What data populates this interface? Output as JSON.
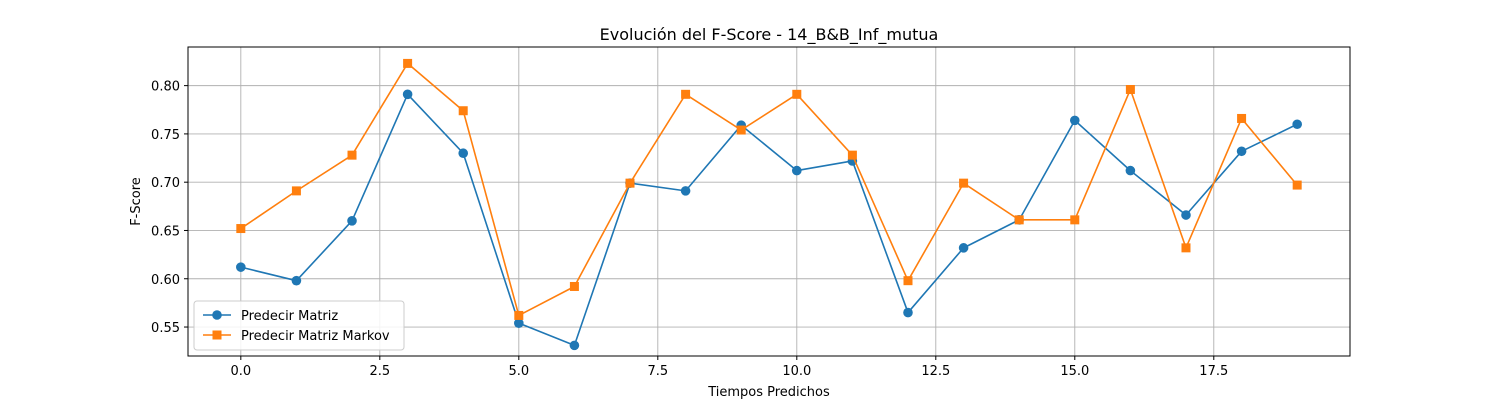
{
  "chart_data": {
    "type": "line",
    "title": "Evolución del F-Score - 14_B&B_Inf_mutua",
    "xlabel": "Tiempos Predichos",
    "ylabel": "F-Score",
    "xlim": [
      -0.95,
      19.95
    ],
    "ylim": [
      0.52,
      0.84
    ],
    "xticks": [
      0.0,
      2.5,
      5.0,
      7.5,
      10.0,
      12.5,
      15.0,
      17.5
    ],
    "xtick_labels": [
      "0.0",
      "2.5",
      "5.0",
      "7.5",
      "10.0",
      "12.5",
      "15.0",
      "17.5"
    ],
    "yticks": [
      0.55,
      0.6,
      0.65,
      0.7,
      0.75,
      0.8
    ],
    "ytick_labels": [
      "0.55",
      "0.60",
      "0.65",
      "0.70",
      "0.75",
      "0.80"
    ],
    "grid": true,
    "legend_position": "lower-left",
    "x": [
      0,
      1,
      2,
      3,
      4,
      5,
      6,
      7,
      8,
      9,
      10,
      11,
      12,
      13,
      14,
      15,
      16,
      17,
      18,
      19
    ],
    "series": [
      {
        "name": "Predecir Matriz",
        "color": "#1f77b4",
        "marker": "circle",
        "values": [
          0.612,
          0.598,
          0.66,
          0.791,
          0.73,
          0.554,
          0.531,
          0.699,
          0.691,
          0.759,
          0.712,
          0.722,
          0.565,
          0.632,
          0.661,
          0.764,
          0.712,
          0.666,
          0.732,
          0.76
        ]
      },
      {
        "name": "Predecir Matriz Markov",
        "color": "#ff7f0e",
        "marker": "square",
        "values": [
          0.652,
          0.691,
          0.728,
          0.823,
          0.774,
          0.562,
          0.592,
          0.699,
          0.791,
          0.754,
          0.791,
          0.728,
          0.598,
          0.699,
          0.661,
          0.661,
          0.796,
          0.632,
          0.766,
          0.697
        ]
      }
    ]
  }
}
